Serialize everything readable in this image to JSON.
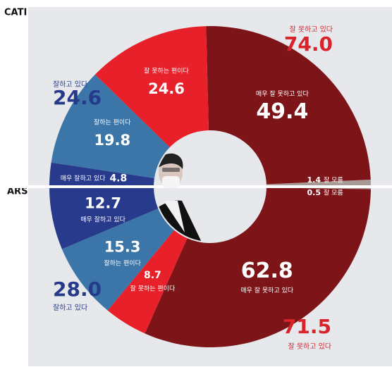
{
  "chart_data": [
    {
      "type": "half-donut",
      "title": "CATI",
      "side": "top",
      "categories": [
        "잘 모름",
        "매우 잘 못하고 있다",
        "잘 못하는 편이다",
        "잘하는 편이다",
        "매우 잘하고 있다"
      ],
      "values": [
        1.4,
        49.4,
        24.6,
        19.8,
        4.8
      ],
      "colors": [
        "#a89a95",
        "#7d1417",
        "#e8202a",
        "#3c75a8",
        "#273a8c"
      ],
      "summary": {
        "labels": [
          "잘 못하고 있다",
          "잘하고 있다"
        ],
        "values": [
          74,
          24.6
        ],
        "value_labels": [
          "74.0",
          "24.6"
        ],
        "colors": [
          "#d8232a",
          "#263a8c"
        ]
      }
    },
    {
      "type": "half-donut",
      "title": "ARS",
      "side": "bottom",
      "categories": [
        "잘 모름",
        "매우 잘 못하고 있다",
        "잘 못하는 편이다",
        "잘하는 편이다",
        "매우 잘하고 있다"
      ],
      "values": [
        0.5,
        62.8,
        8.7,
        15.3,
        12.7
      ],
      "colors": [
        "#a89a95",
        "#7d1417",
        "#e8202a",
        "#3c75a8",
        "#273a8c"
      ],
      "summary": {
        "labels": [
          "잘하고 있다",
          "잘 못하고 있다"
        ],
        "values": [
          28,
          71.5
        ],
        "value_labels": [
          "28.0",
          "71.5"
        ],
        "colors": [
          "#263a8c",
          "#d8232a"
        ]
      }
    }
  ]
}
